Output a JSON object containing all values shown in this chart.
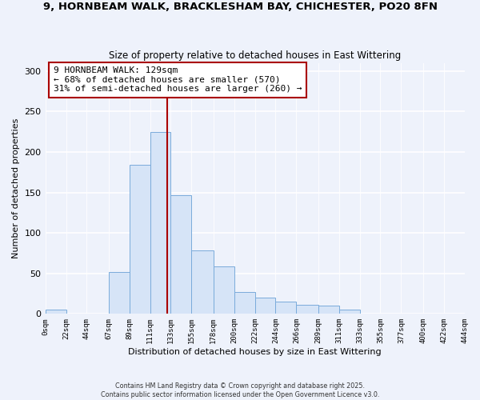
{
  "title1": "9, HORNBEAM WALK, BRACKLESHAM BAY, CHICHESTER, PO20 8FN",
  "title2": "Size of property relative to detached houses in East Wittering",
  "xlabel": "Distribution of detached houses by size in East Wittering",
  "ylabel": "Number of detached properties",
  "bin_edges": [
    0,
    22,
    44,
    67,
    89,
    111,
    133,
    155,
    178,
    200,
    222,
    244,
    266,
    289,
    311,
    333,
    355,
    377,
    400,
    422,
    444
  ],
  "bar_heights": [
    5,
    0,
    0,
    52,
    184,
    225,
    147,
    78,
    59,
    27,
    20,
    15,
    11,
    10,
    5,
    0,
    0,
    0,
    0,
    0
  ],
  "bar_color": "#d6e4f7",
  "bar_edgecolor": "#7aabdb",
  "vline_x": 129,
  "vline_color": "#aa0000",
  "annotation_title": "9 HORNBEAM WALK: 129sqm",
  "annotation_line2": "← 68% of detached houses are smaller (570)",
  "annotation_line3": "31% of semi-detached houses are larger (260) →",
  "annotation_box_edgecolor": "#aa0000",
  "annotation_box_facecolor": "#ffffff",
  "ylim": [
    0,
    310
  ],
  "yticks": [
    0,
    50,
    100,
    150,
    200,
    250,
    300
  ],
  "tick_labels": [
    "0sqm",
    "22sqm",
    "44sqm",
    "67sqm",
    "89sqm",
    "111sqm",
    "133sqm",
    "155sqm",
    "178sqm",
    "200sqm",
    "222sqm",
    "244sqm",
    "266sqm",
    "289sqm",
    "311sqm",
    "333sqm",
    "355sqm",
    "377sqm",
    "400sqm",
    "422sqm",
    "444sqm"
  ],
  "footer1": "Contains HM Land Registry data © Crown copyright and database right 2025.",
  "footer2": "Contains public sector information licensed under the Open Government Licence v3.0.",
  "bg_color": "#eef2fb",
  "plot_bg_color": "#eef2fb",
  "grid_color": "#ffffff"
}
